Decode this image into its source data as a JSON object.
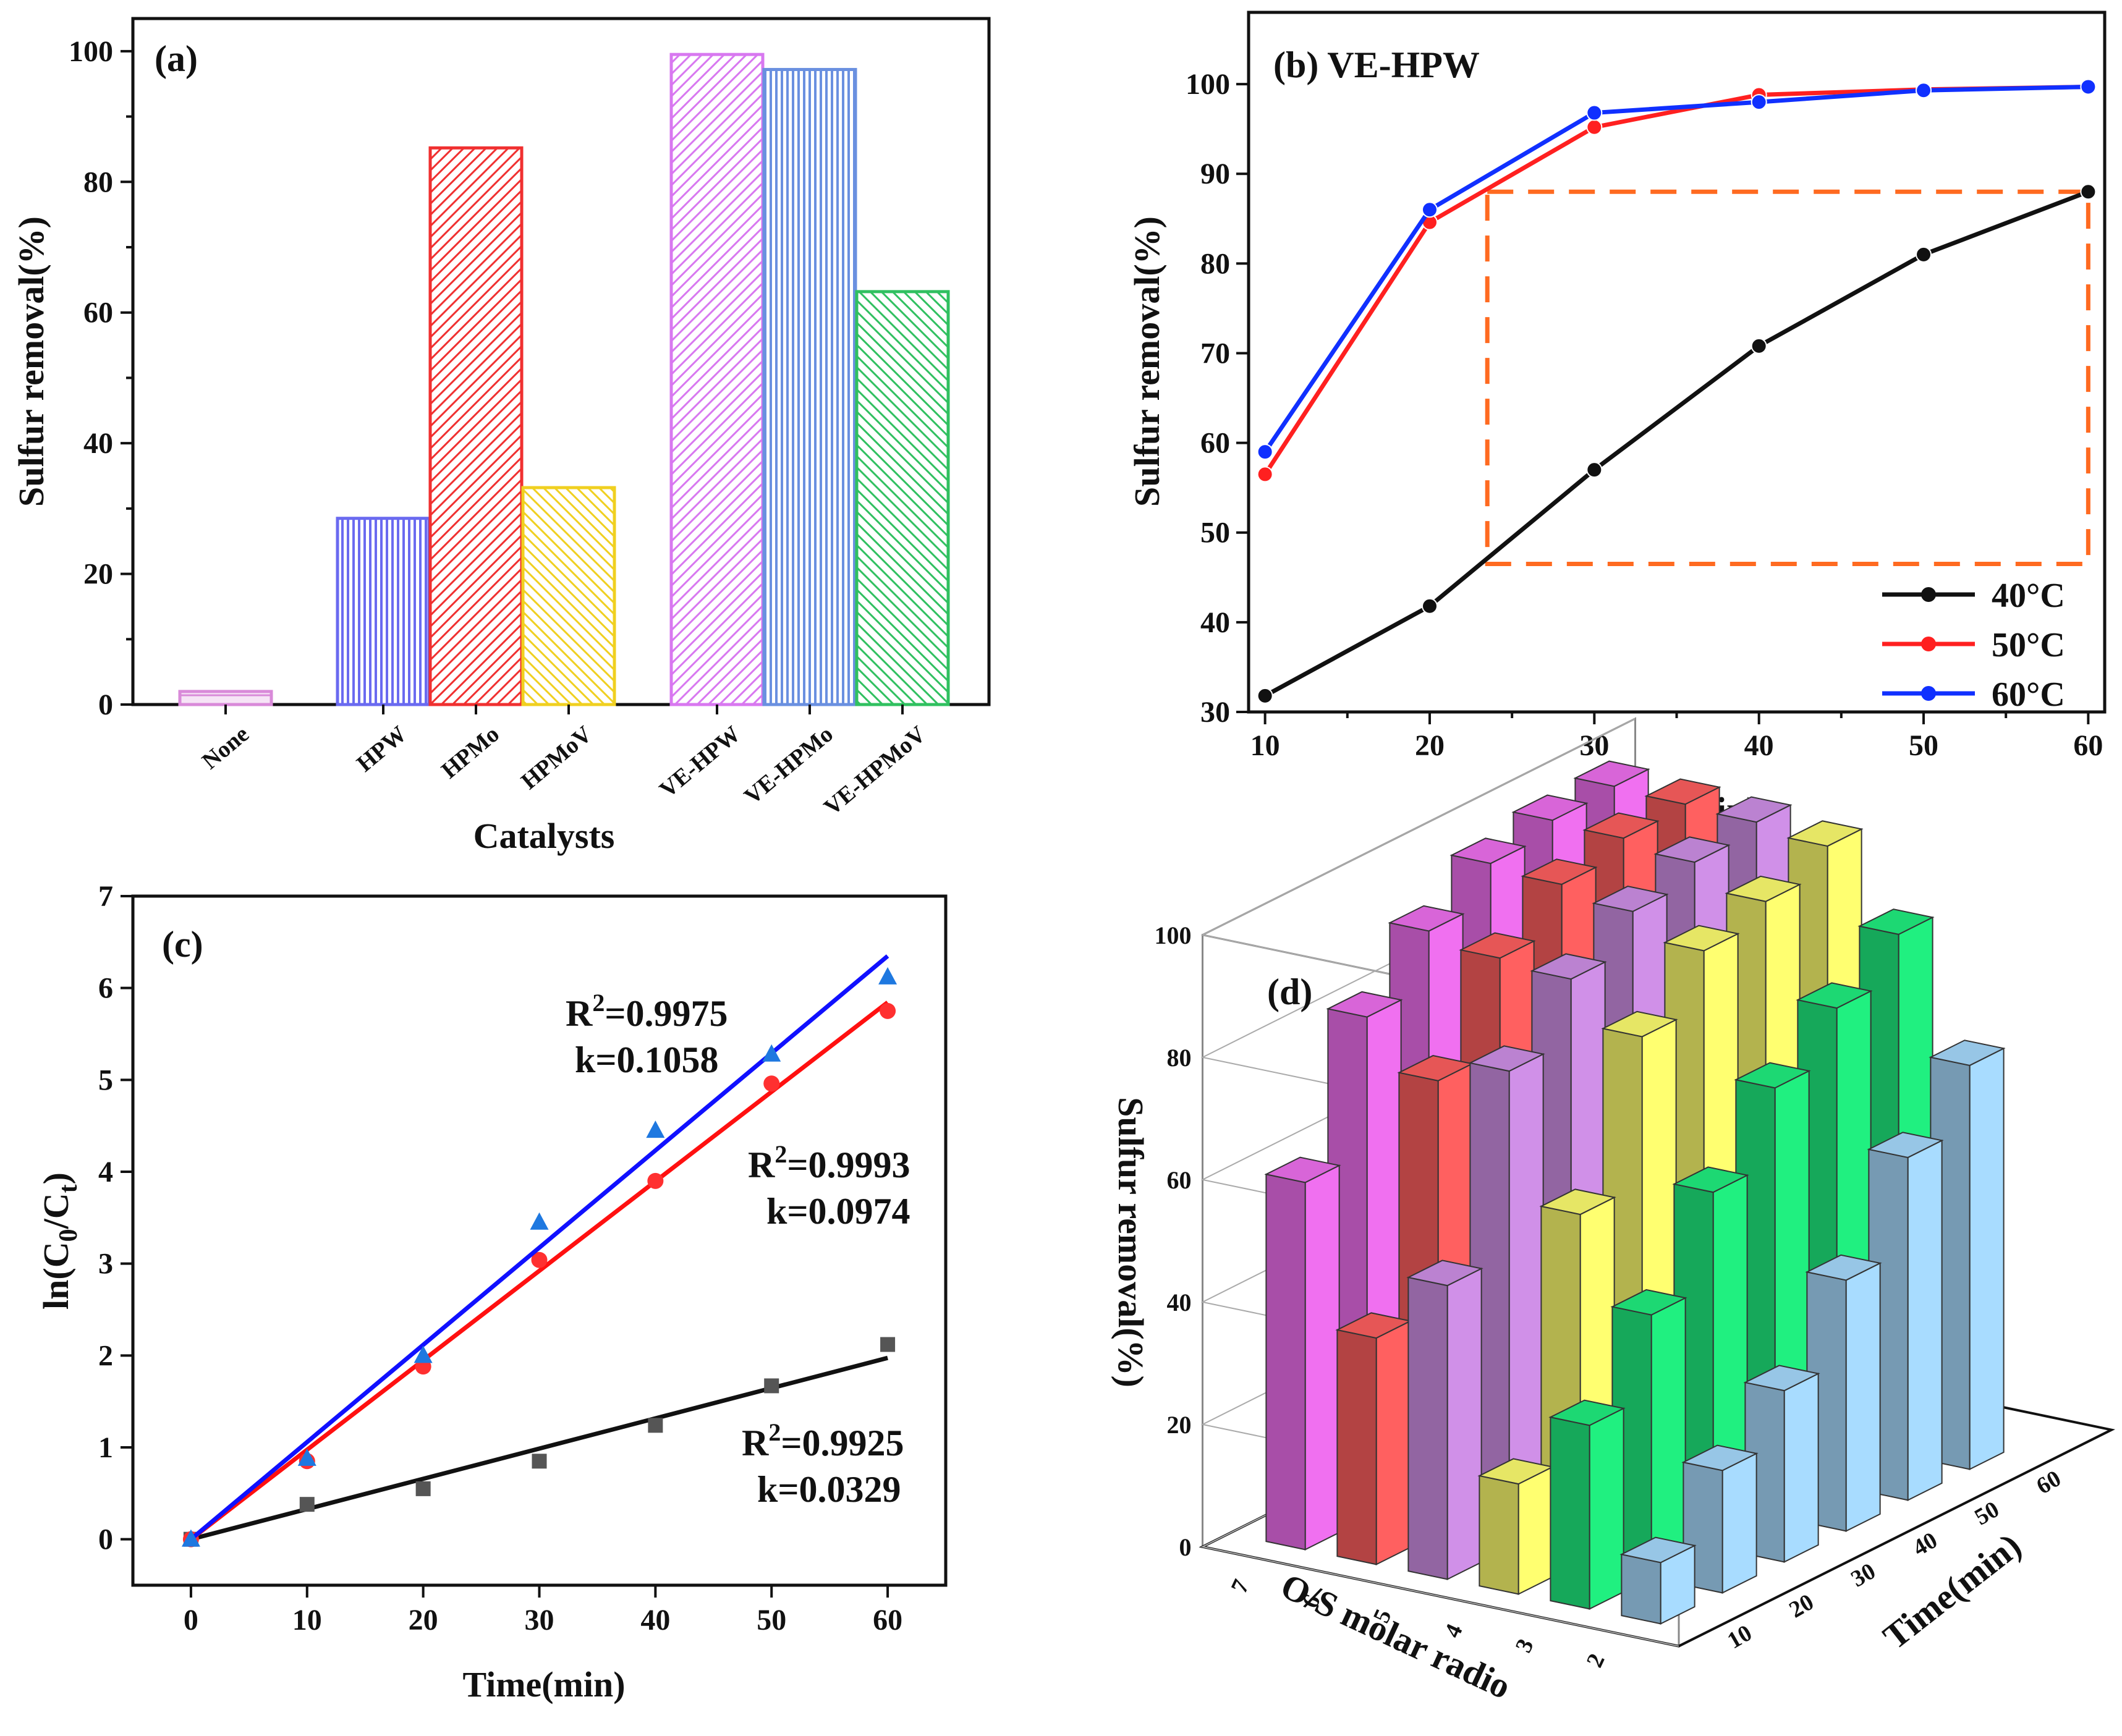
{
  "chart_data": [
    {
      "panel": "(a)",
      "type": "bar",
      "title": "",
      "xlabel": "Catalysts",
      "ylabel": "Sulfur removal(%)",
      "ylim": [
        0,
        105
      ],
      "yticks": [
        0,
        20,
        40,
        60,
        80,
        100
      ],
      "categories": [
        "None",
        "HPW",
        "HPMo",
        "HPMoV",
        "VE-HPW",
        "VE-HPMo",
        "VE-HPMoV"
      ],
      "values": [
        2,
        28.5,
        85.2,
        33.2,
        99.5,
        97.2,
        63.2
      ],
      "colors": [
        "#d98ad9",
        "#6a6af0",
        "#f03030",
        "#f0d020",
        "#d878f0",
        "#6a90e0",
        "#30c060"
      ]
    },
    {
      "panel": "(b) VE-HPW",
      "type": "line",
      "xlabel": "Time(min)",
      "ylabel": "Sulfur removal(%)",
      "xlim": [
        9,
        61
      ],
      "ylim": [
        30,
        108
      ],
      "xticks": [
        10,
        20,
        30,
        40,
        50,
        60
      ],
      "yticks": [
        30,
        40,
        50,
        60,
        70,
        80,
        90,
        100
      ],
      "x": [
        10,
        20,
        30,
        40,
        50,
        60
      ],
      "series": [
        {
          "name": "40°C",
          "color": "#111111",
          "values": [
            31.8,
            41.8,
            57,
            70.8,
            81,
            88
          ]
        },
        {
          "name": "50°C",
          "color": "#ff2020",
          "values": [
            56.5,
            84.6,
            95.2,
            98.8,
            99.4,
            99.7
          ]
        },
        {
          "name": "60°C",
          "color": "#1030ff",
          "values": [
            59,
            86,
            96.8,
            98,
            99.3,
            99.7
          ]
        }
      ],
      "highlight_box": {
        "x": [
          23.5,
          60
        ],
        "y": [
          46.5,
          88
        ],
        "color": "#ff6a20"
      }
    },
    {
      "panel": "(c)",
      "type": "scatter",
      "xlabel": "Time(min)",
      "ylabel": "ln(C0/Ct)",
      "xlim": [
        -5,
        65
      ],
      "ylim": [
        -0.5,
        7
      ],
      "xticks": [
        0,
        10,
        20,
        30,
        40,
        50,
        60
      ],
      "yticks": [
        0,
        1,
        2,
        3,
        4,
        5,
        6,
        7
      ],
      "x": [
        0,
        10,
        20,
        30,
        40,
        50,
        60
      ],
      "series": [
        {
          "name": "40°C",
          "marker": "square",
          "color": "#555555",
          "line_color": "#111111",
          "values": [
            0,
            0.38,
            0.55,
            0.85,
            1.24,
            1.67,
            2.12
          ],
          "slope": 0.0329,
          "fit_r2": "R2=0.9925",
          "fit_k": "k=0.0329"
        },
        {
          "name": "50°C",
          "marker": "circle",
          "color": "#ff3030",
          "line_color": "#ff1010",
          "values": [
            0,
            0.85,
            1.88,
            3.04,
            3.9,
            4.96,
            5.75
          ],
          "slope": 0.0974,
          "fit_r2": "R2=0.9993",
          "fit_k": "k=0.0974"
        },
        {
          "name": "60°C",
          "marker": "triangle",
          "color": "#1e78e0",
          "line_color": "#1010ff",
          "values": [
            0,
            0.88,
            2,
            3.45,
            4.45,
            5.28,
            6.12
          ],
          "slope": 0.1058,
          "fit_r2": "R2=0.9975",
          "fit_k": "k=0.1058"
        }
      ]
    },
    {
      "panel": "(d)",
      "type": "bar3d",
      "xlabel": "O/S molar radio",
      "ylabel": "Time(min)",
      "zlabel": "Sulfur removal(%)",
      "zlim": [
        0,
        100
      ],
      "zticks": [
        0,
        20,
        40,
        60,
        80,
        100
      ],
      "os_ticks": [
        7,
        6,
        5,
        4,
        3,
        2
      ],
      "time_ticks": [
        10,
        20,
        30,
        40,
        50,
        60
      ],
      "rows": [
        {
          "os": 7,
          "color": "#f070f0",
          "values": [
            60,
            82,
            91,
            97,
            99,
            99.5
          ]
        },
        {
          "os": 6,
          "color": "#ff6060",
          "values": [
            37,
            74,
            89,
            96,
            98.5,
            99
          ]
        },
        {
          "os": 5,
          "color": "#d090e8",
          "values": [
            48,
            78,
            88,
            94,
            97,
            98.5
          ]
        },
        {
          "os": 4,
          "color": "#ffff70",
          "values": [
            18,
            57,
            81,
            90,
            93,
            97
          ]
        },
        {
          "os": 3,
          "color": "#20f080",
          "values": [
            30,
            43,
            58,
            70,
            78,
            85
          ]
        },
        {
          "os": 2,
          "color": "#a8dcff",
          "values": [
            10,
            20,
            28,
            41,
            56,
            66
          ]
        }
      ]
    }
  ]
}
